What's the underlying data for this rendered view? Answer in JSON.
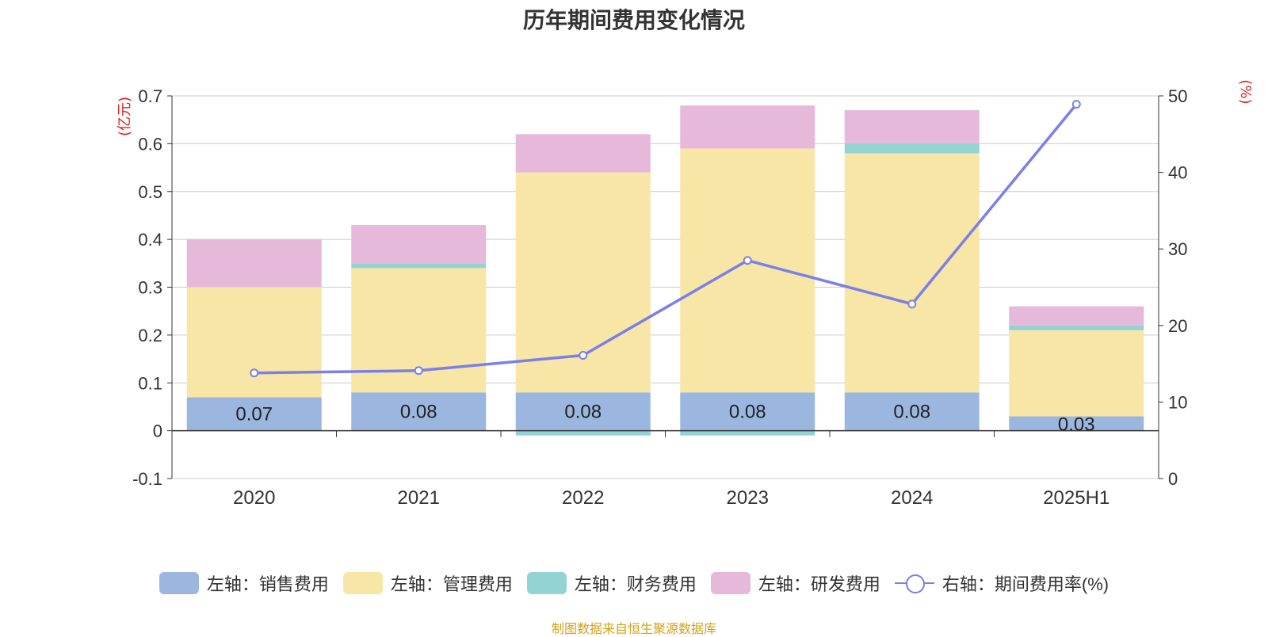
{
  "title": "历年期间费用变化情况",
  "footer": "制图数据来自恒生聚源数据库",
  "chart_data": {
    "type": "bar",
    "stacked": true,
    "categories": [
      "2020",
      "2021",
      "2022",
      "2023",
      "2024",
      "2025H1"
    ],
    "left_axis": {
      "unit": "(亿元)",
      "ylim": [
        -0.1,
        0.7
      ],
      "ticks": [
        "-0.1",
        "0",
        "0.1",
        "0.2",
        "0.3",
        "0.4",
        "0.5",
        "0.6",
        "0.7"
      ]
    },
    "right_axis": {
      "unit": "(%)",
      "ylim": [
        0,
        50
      ],
      "ticks": [
        "0",
        "10",
        "20",
        "30",
        "40",
        "50"
      ]
    },
    "series": [
      {
        "name": "左轴：销售费用",
        "axis": "left",
        "color": "#9bb7e0",
        "values": [
          0.07,
          0.08,
          0.08,
          0.08,
          0.08,
          0.03
        ],
        "labels": [
          "0.07",
          "0.08",
          "0.08",
          "0.08",
          "0.08",
          "0.03"
        ]
      },
      {
        "name": "左轴：管理费用",
        "axis": "left",
        "color": "#f7e6a6",
        "values": [
          0.23,
          0.26,
          0.46,
          0.51,
          0.5,
          0.18
        ]
      },
      {
        "name": "左轴：财务费用",
        "axis": "left",
        "color": "#94d3d3",
        "values": [
          0.0,
          0.01,
          -0.01,
          -0.01,
          0.02,
          0.01
        ]
      },
      {
        "name": "左轴：研发费用",
        "axis": "left",
        "color": "#e6b8d9",
        "values": [
          0.1,
          0.08,
          0.08,
          0.09,
          0.07,
          0.04
        ]
      },
      {
        "name": "右轴：期间费用率(%)",
        "axis": "right",
        "type": "line",
        "color": "#7b7fe8",
        "values": [
          13.8,
          14.1,
          16.1,
          28.5,
          22.8,
          48.9
        ]
      }
    ],
    "grid": true,
    "legend_position": "bottom"
  }
}
